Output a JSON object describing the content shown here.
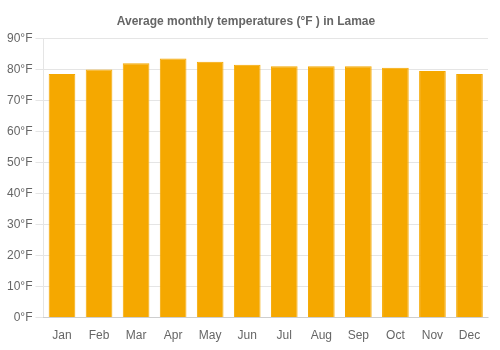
{
  "chart_data": {
    "type": "bar",
    "title": "Average monthly temperatures (°F ) in Lamae",
    "categories": [
      "Jan",
      "Feb",
      "Mar",
      "Apr",
      "May",
      "Jun",
      "Jul",
      "Aug",
      "Sep",
      "Oct",
      "Nov",
      "Dec"
    ],
    "values": [
      78.5,
      80.0,
      82.0,
      83.5,
      82.5,
      81.5,
      81.0,
      81.0,
      81.0,
      80.5,
      79.5,
      78.5
    ],
    "color": "#F5A800",
    "ylim": [
      0,
      90
    ],
    "yticks": [
      {
        "value": 0,
        "label": "0°F"
      },
      {
        "value": 10,
        "label": "10°F"
      },
      {
        "value": 20,
        "label": "20°F"
      },
      {
        "value": 30,
        "label": "30°F"
      },
      {
        "value": 40,
        "label": "40°F"
      },
      {
        "value": 50,
        "label": "50°F"
      },
      {
        "value": 60,
        "label": "60°F"
      },
      {
        "value": 70,
        "label": "70°F"
      },
      {
        "value": 80,
        "label": "80°F"
      },
      {
        "value": 90,
        "label": "90°F"
      }
    ],
    "grid": "y"
  }
}
